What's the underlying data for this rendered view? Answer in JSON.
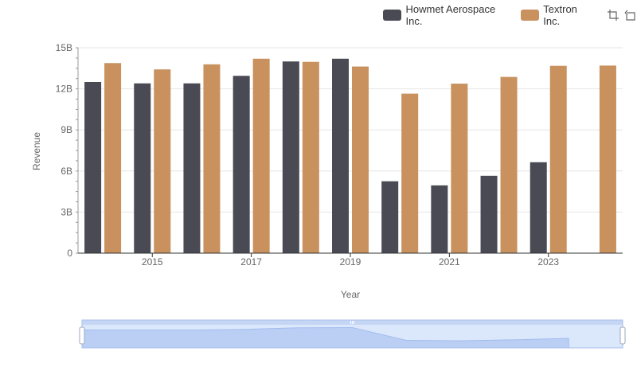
{
  "chart_data": {
    "type": "bar",
    "title": "",
    "xlabel": "Year",
    "ylabel": "Revenue",
    "ylim": [
      0,
      15000000000
    ],
    "y_ticks": [
      0,
      3000000000,
      6000000000,
      9000000000,
      12000000000,
      15000000000
    ],
    "y_tick_labels": [
      "0",
      "3B",
      "6B",
      "9B",
      "12B",
      "15B"
    ],
    "categories": [
      "2014",
      "2015",
      "2016",
      "2017",
      "2018",
      "2019",
      "2020",
      "2021",
      "2022",
      "2023",
      "2024"
    ],
    "x_tick_labels": [
      "2015",
      "2017",
      "2019",
      "2021",
      "2023"
    ],
    "grid": true,
    "legend_position": "top-right",
    "series": [
      {
        "name": "Howmet Aerospace Inc.",
        "color": "#4a4a55",
        "values": [
          12500000000,
          12400000000,
          12400000000,
          12950000000,
          14000000000,
          14200000000,
          5250000000,
          4950000000,
          5650000000,
          6640000000,
          null
        ]
      },
      {
        "name": "Textron Inc.",
        "color": "#c8915e",
        "values": [
          13880000000,
          13420000000,
          13790000000,
          14200000000,
          13970000000,
          13630000000,
          11650000000,
          12380000000,
          12870000000,
          13680000000,
          13700000000
        ]
      }
    ]
  },
  "toolbox": {
    "zoom_icon": "zoom-icon",
    "restore_icon": "restore-icon"
  },
  "datazoom": {
    "range_start_pct": 0,
    "range_end_pct": 100
  }
}
